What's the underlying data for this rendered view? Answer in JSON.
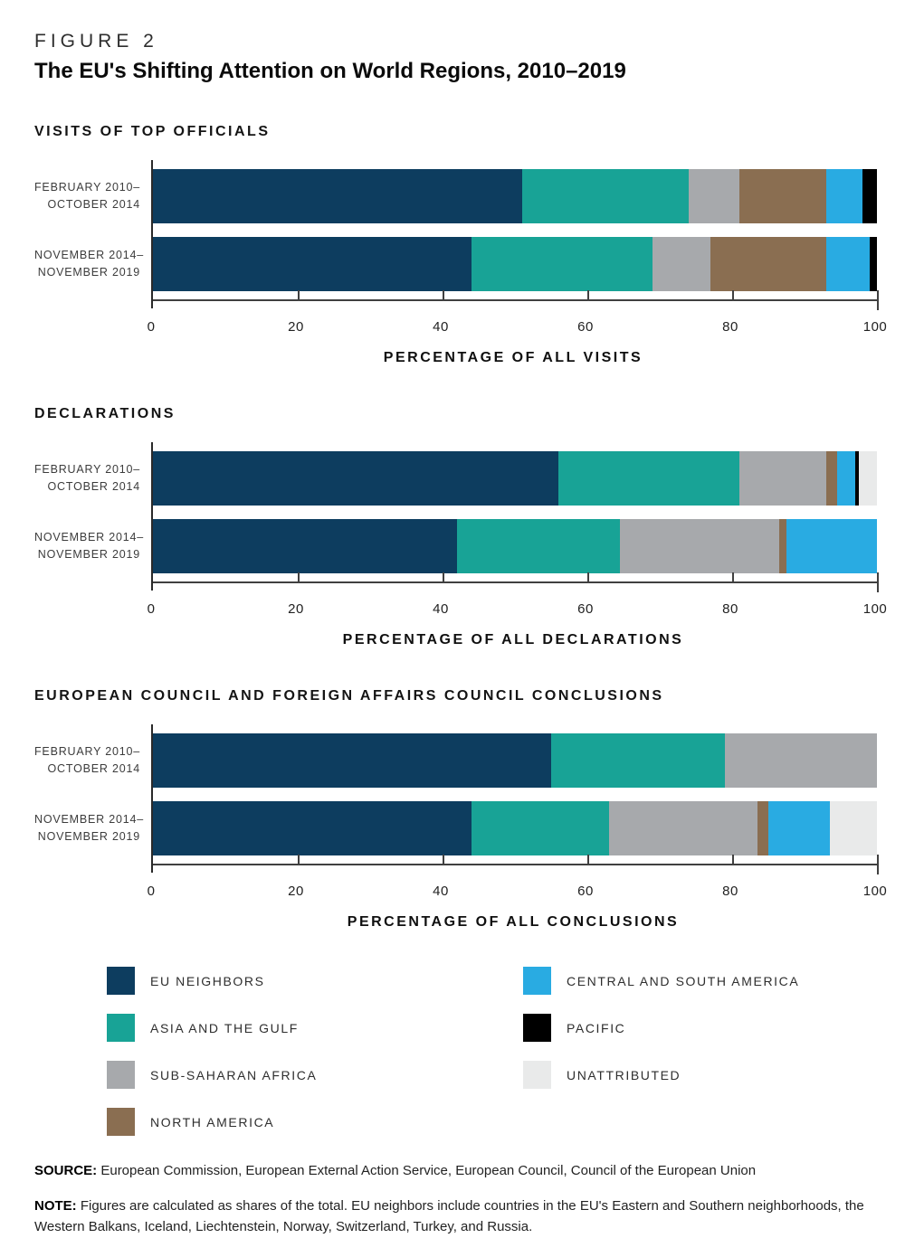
{
  "figure": {
    "kicker": "FIGURE 2",
    "title": "The EU's Shifting Attention on World Regions, 2010–2019"
  },
  "colors": {
    "EU NEIGHBORS": "#0d3d5f",
    "ASIA AND THE GULF": "#18a396",
    "SUB-SAHARAN AFRICA": "#a7a9ac",
    "NORTH AMERICA": "#8a6e51",
    "CENTRAL AND SOUTH AMERICA": "#29abe2",
    "PACIFIC": "#000000",
    "UNATTRIBUTED": "#e9eaea"
  },
  "chart_data": [
    {
      "id": "visits",
      "type": "bar",
      "stacked": true,
      "orientation": "horizontal",
      "title": "VISITS OF TOP OFFICIALS",
      "xlabel": "PERCENTAGE OF ALL VISITS",
      "xlim": [
        0,
        100
      ],
      "xticks": [
        0,
        20,
        40,
        60,
        80,
        100
      ],
      "categories": [
        [
          "FEBRUARY 2010–",
          "OCTOBER 2014"
        ],
        [
          "NOVEMBER 2014–",
          "NOVEMBER 2019"
        ]
      ],
      "series": [
        {
          "name": "EU NEIGHBORS",
          "values": [
            51,
            44
          ]
        },
        {
          "name": "ASIA AND THE GULF",
          "values": [
            23,
            25
          ]
        },
        {
          "name": "SUB-SAHARAN AFRICA",
          "values": [
            7,
            8
          ]
        },
        {
          "name": "NORTH AMERICA",
          "values": [
            12,
            16
          ]
        },
        {
          "name": "CENTRAL AND SOUTH AMERICA",
          "values": [
            5,
            6
          ]
        },
        {
          "name": "PACIFIC",
          "values": [
            2,
            1
          ]
        },
        {
          "name": "UNATTRIBUTED",
          "values": [
            0,
            0
          ]
        }
      ]
    },
    {
      "id": "declarations",
      "type": "bar",
      "stacked": true,
      "orientation": "horizontal",
      "title": "DECLARATIONS",
      "xlabel": "PERCENTAGE OF ALL DECLARATIONS",
      "xlim": [
        0,
        100
      ],
      "xticks": [
        0,
        20,
        40,
        60,
        80,
        100
      ],
      "categories": [
        [
          "FEBRUARY 2010–",
          "OCTOBER 2014"
        ],
        [
          "NOVEMBER 2014–",
          "NOVEMBER 2019"
        ]
      ],
      "series": [
        {
          "name": "EU NEIGHBORS",
          "values": [
            56,
            42
          ]
        },
        {
          "name": "ASIA AND THE GULF",
          "values": [
            25,
            22.5
          ]
        },
        {
          "name": "SUB-SAHARAN AFRICA",
          "values": [
            12,
            22
          ]
        },
        {
          "name": "NORTH AMERICA",
          "values": [
            1.5,
            1
          ]
        },
        {
          "name": "CENTRAL AND SOUTH AMERICA",
          "values": [
            2.5,
            12.5
          ]
        },
        {
          "name": "PACIFIC",
          "values": [
            0.5,
            0
          ]
        },
        {
          "name": "UNATTRIBUTED",
          "values": [
            2.5,
            0
          ]
        }
      ]
    },
    {
      "id": "conclusions",
      "type": "bar",
      "stacked": true,
      "orientation": "horizontal",
      "title": "EUROPEAN COUNCIL AND FOREIGN AFFAIRS COUNCIL CONCLUSIONS",
      "xlabel": "PERCENTAGE OF ALL CONCLUSIONS",
      "xlim": [
        0,
        100
      ],
      "xticks": [
        0,
        20,
        40,
        60,
        80,
        100
      ],
      "categories": [
        [
          "FEBRUARY 2010–",
          "OCTOBER 2014"
        ],
        [
          "NOVEMBER 2014–",
          "NOVEMBER 2019"
        ]
      ],
      "series": [
        {
          "name": "EU NEIGHBORS",
          "values": [
            55,
            44
          ]
        },
        {
          "name": "ASIA AND THE GULF",
          "values": [
            24,
            19
          ]
        },
        {
          "name": "SUB-SAHARAN AFRICA",
          "values": [
            21,
            20.5
          ]
        },
        {
          "name": "NORTH AMERICA",
          "values": [
            0,
            1.5
          ]
        },
        {
          "name": "CENTRAL AND SOUTH AMERICA",
          "values": [
            0,
            8.5
          ]
        },
        {
          "name": "PACIFIC",
          "values": [
            0,
            0
          ]
        },
        {
          "name": "UNATTRIBUTED",
          "values": [
            0,
            6.5
          ]
        }
      ]
    }
  ],
  "legend": {
    "columns": [
      [
        "EU NEIGHBORS",
        "ASIA AND THE GULF",
        "SUB-SAHARAN AFRICA",
        "NORTH AMERICA"
      ],
      [
        "CENTRAL AND SOUTH AMERICA",
        "PACIFIC",
        "UNATTRIBUTED"
      ]
    ]
  },
  "source": {
    "label": "SOURCE:",
    "text": "European Commission, European External Action Service, European Council, Council of the European Union"
  },
  "note": {
    "label": "NOTE:",
    "text": "Figures are calculated as shares of the total. EU neighbors include countries in the EU's Eastern and Southern neighborhoods, the Western Balkans, Iceland, Liechtenstein, Norway, Switzerland, Turkey, and Russia."
  }
}
